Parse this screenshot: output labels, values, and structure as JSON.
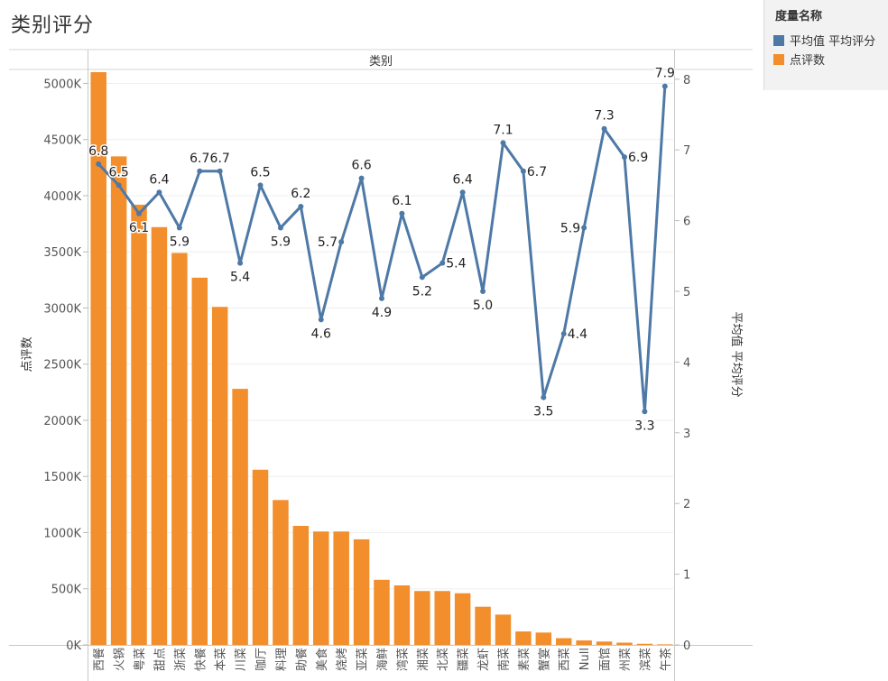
{
  "title": "类别评分",
  "legend": {
    "title": "度量名称",
    "items": [
      {
        "label": "平均值 平均评分",
        "color": "#4e79a7"
      },
      {
        "label": "点评数",
        "color": "#f28e2b"
      }
    ]
  },
  "chart_data": {
    "type": "bar+line",
    "top_axis_label": "类别",
    "y_left_label": "点评数",
    "y_right_label": "平均值 平均评分",
    "y_left_ticks": [
      "0K",
      "500K",
      "1000K",
      "1500K",
      "2000K",
      "2500K",
      "3000K",
      "3500K",
      "4000K",
      "4500K",
      "5000K"
    ],
    "y_left_range": [
      0,
      5100000
    ],
    "y_right_ticks": [
      "0",
      "1",
      "2",
      "3",
      "4",
      "5",
      "6",
      "7",
      "8"
    ],
    "y_right_range": [
      0,
      8.1
    ],
    "categories": [
      "西餐",
      "火锅",
      "粤菜",
      "甜点",
      "浙菜",
      "快餐",
      "本菜",
      "川菜",
      "咖厅",
      "料理",
      "助餐",
      "美食",
      "烧烤",
      "亚菜",
      "海鲜",
      "湾菜",
      "湘菜",
      "北菜",
      "疆菜",
      "龙虾",
      "南菜",
      "素菜",
      "蟹宴",
      "西菜",
      "Null",
      "面馆",
      "州菜",
      "滨菜",
      "午茶"
    ],
    "series": [
      {
        "name": "点评数",
        "color": "#f28e2b",
        "type": "bar",
        "values": [
          5100000,
          4350000,
          3920000,
          3720000,
          3490000,
          3270000,
          3010000,
          2280000,
          1560000,
          1290000,
          1060000,
          1010000,
          1010000,
          940000,
          580000,
          530000,
          480000,
          480000,
          460000,
          340000,
          270000,
          120000,
          110000,
          60000,
          40000,
          30000,
          20000,
          10000,
          5000
        ]
      },
      {
        "name": "平均值 平均评分",
        "color": "#4e79a7",
        "type": "line",
        "values": [
          6.8,
          6.5,
          6.1,
          6.4,
          5.9,
          6.7,
          6.7,
          5.4,
          6.5,
          5.9,
          6.2,
          4.6,
          5.7,
          6.6,
          4.9,
          6.1,
          5.2,
          5.4,
          6.4,
          5.0,
          7.1,
          6.7,
          3.5,
          4.4,
          5.9,
          7.3,
          6.9,
          3.3,
          7.9
        ],
        "labels": [
          "6.8",
          "6.5",
          "6.1",
          "6.4",
          "5.9",
          "6.7",
          "6.7",
          "5.4",
          "6.5",
          "5.9",
          "6.2",
          "4.6",
          "5.7",
          "6.6",
          "4.9",
          "6.1",
          "5.2",
          "5.4",
          "6.4",
          "5.0",
          "7.1",
          "6.7",
          "3.5",
          "4.4",
          "5.9",
          "7.3",
          "6.9",
          "3.3",
          "7.9"
        ],
        "label_positions": [
          "above",
          "above",
          "below",
          "above",
          "below",
          "above",
          "above",
          "below",
          "above",
          "below",
          "above",
          "below",
          "left",
          "above",
          "below",
          "above",
          "below",
          "right",
          "above",
          "below",
          "above",
          "right",
          "below",
          "right",
          "left",
          "above",
          "right",
          "below",
          "above"
        ]
      }
    ]
  }
}
